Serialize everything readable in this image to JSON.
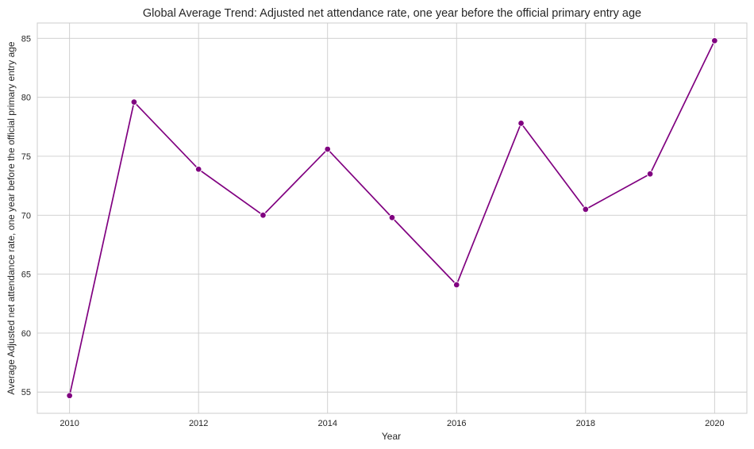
{
  "chart_data": {
    "type": "line",
    "title": "Global Average Trend: Adjusted net attendance rate, one year before the official primary entry age",
    "xlabel": "Year",
    "ylabel": "Average Adjusted net attendance rate, one year before the official primary entry age",
    "xlim": [
      2009.5,
      2020.5
    ],
    "ylim": [
      53.2,
      86.3
    ],
    "x_ticks": [
      2010,
      2012,
      2014,
      2016,
      2018,
      2020
    ],
    "y_ticks": [
      55,
      60,
      65,
      70,
      75,
      80,
      85
    ],
    "grid": true,
    "line_color": "#800080",
    "marker": "circle",
    "series": [
      {
        "x": [
          2010,
          2011,
          2012,
          2013,
          2014,
          2015,
          2016,
          2017,
          2018,
          2019,
          2020
        ],
        "y": [
          54.7,
          79.6,
          73.9,
          70.0,
          75.6,
          69.8,
          64.1,
          77.8,
          70.5,
          73.5,
          84.8
        ]
      }
    ]
  }
}
